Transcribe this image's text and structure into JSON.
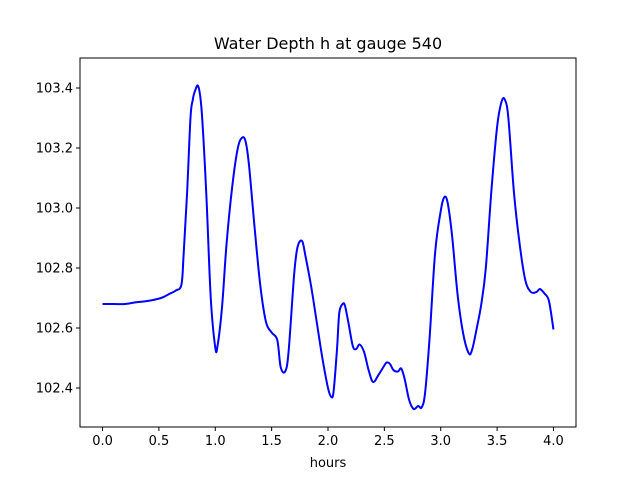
{
  "chart_data": {
    "type": "line",
    "title": "Water Depth h at gauge 540",
    "xlabel": "hours",
    "ylabel": "",
    "xlim": [
      -0.2,
      4.2
    ],
    "ylim": [
      102.27,
      103.5
    ],
    "xticks": [
      {
        "value": 0.0,
        "label": "0.0"
      },
      {
        "value": 0.5,
        "label": "0.5"
      },
      {
        "value": 1.0,
        "label": "1.0"
      },
      {
        "value": 1.5,
        "label": "1.5"
      },
      {
        "value": 2.0,
        "label": "2.0"
      },
      {
        "value": 2.5,
        "label": "2.5"
      },
      {
        "value": 3.0,
        "label": "3.0"
      },
      {
        "value": 3.5,
        "label": "3.5"
      },
      {
        "value": 4.0,
        "label": "4.0"
      }
    ],
    "yticks": [
      {
        "value": 102.4,
        "label": "102.4"
      },
      {
        "value": 102.6,
        "label": "102.6"
      },
      {
        "value": 102.8,
        "label": "102.8"
      },
      {
        "value": 103.0,
        "label": "103.0"
      },
      {
        "value": 103.2,
        "label": "103.2"
      },
      {
        "value": 103.4,
        "label": "103.4"
      }
    ],
    "grid": false,
    "series": [
      {
        "color": "#0000ff",
        "x": [
          0.0,
          0.1,
          0.2,
          0.3,
          0.4,
          0.5,
          0.55,
          0.6,
          0.65,
          0.7,
          0.72,
          0.75,
          0.78,
          0.8,
          0.82,
          0.85,
          0.88,
          0.92,
          0.96,
          1.0,
          1.02,
          1.06,
          1.1,
          1.15,
          1.2,
          1.24,
          1.27,
          1.3,
          1.35,
          1.4,
          1.45,
          1.5,
          1.55,
          1.58,
          1.62,
          1.65,
          1.7,
          1.73,
          1.77,
          1.8,
          1.85,
          1.9,
          1.95,
          2.0,
          2.03,
          2.05,
          2.08,
          2.1,
          2.13,
          2.15,
          2.18,
          2.22,
          2.25,
          2.28,
          2.32,
          2.36,
          2.4,
          2.45,
          2.5,
          2.52,
          2.55,
          2.58,
          2.62,
          2.65,
          2.68,
          2.72,
          2.76,
          2.8,
          2.83,
          2.86,
          2.9,
          2.95,
          3.0,
          3.03,
          3.06,
          3.1,
          3.15,
          3.2,
          3.25,
          3.28,
          3.32,
          3.36,
          3.4,
          3.45,
          3.5,
          3.54,
          3.57,
          3.6,
          3.65,
          3.7,
          3.75,
          3.8,
          3.85,
          3.88,
          3.92,
          3.96,
          4.0
        ],
        "y": [
          102.68,
          102.68,
          102.68,
          102.686,
          102.69,
          102.698,
          102.705,
          102.715,
          102.725,
          102.745,
          102.85,
          103.05,
          103.3,
          103.36,
          103.39,
          103.405,
          103.32,
          103.05,
          102.7,
          102.535,
          102.54,
          102.67,
          102.88,
          103.07,
          103.2,
          103.235,
          103.22,
          103.14,
          102.93,
          102.74,
          102.62,
          102.585,
          102.56,
          102.47,
          102.455,
          102.52,
          102.78,
          102.87,
          102.89,
          102.84,
          102.74,
          102.62,
          102.5,
          102.4,
          102.37,
          102.39,
          102.53,
          102.65,
          102.68,
          102.675,
          102.62,
          102.54,
          102.53,
          102.545,
          102.52,
          102.46,
          102.42,
          102.445,
          102.475,
          102.485,
          102.48,
          102.46,
          102.455,
          102.465,
          102.43,
          102.36,
          102.33,
          102.34,
          102.335,
          102.38,
          102.56,
          102.85,
          102.99,
          103.035,
          103.02,
          102.91,
          102.71,
          102.58,
          102.515,
          102.53,
          102.6,
          102.68,
          102.8,
          103.06,
          103.27,
          103.355,
          103.36,
          103.3,
          103.05,
          102.88,
          102.76,
          102.72,
          102.72,
          102.73,
          102.715,
          102.69,
          102.595
        ]
      }
    ]
  }
}
